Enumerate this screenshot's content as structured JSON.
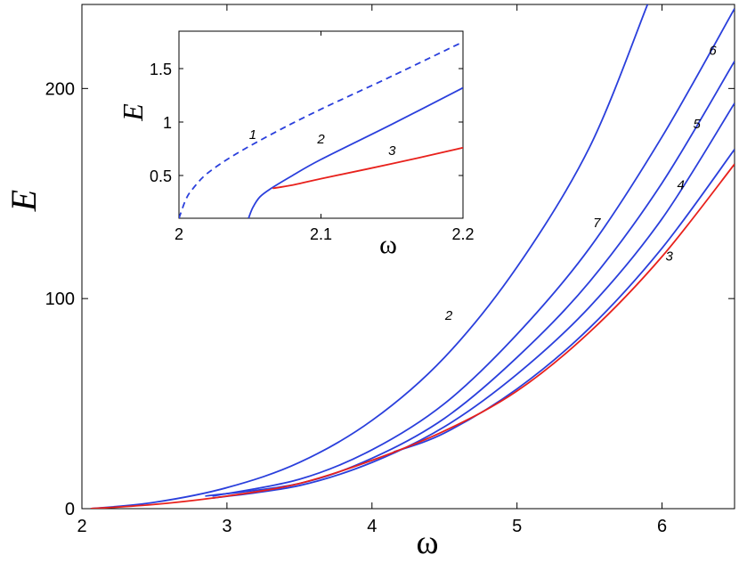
{
  "colors": {
    "blue": "#2a3fdc",
    "red": "#e8211c",
    "axis": "#000000"
  },
  "chart_data": [
    {
      "type": "line",
      "xlabel": "ω",
      "ylabel": "E",
      "xlim": [
        2,
        6.5
      ],
      "ylim": [
        0,
        240
      ],
      "xticks": [
        2,
        3,
        4,
        5,
        6
      ],
      "yticks": [
        0,
        100,
        200
      ],
      "series": [
        {
          "name": "2",
          "color": "#2a3fdc",
          "style": "solid",
          "points": [
            [
              2.06,
              0
            ],
            [
              2.5,
              3
            ],
            [
              3,
              10
            ],
            [
              3.5,
              22
            ],
            [
              4,
              42
            ],
            [
              4.5,
              72
            ],
            [
              5,
              115
            ],
            [
              5.5,
              172
            ],
            [
              5.9,
              240
            ]
          ],
          "label_at": [
            4.53,
            90
          ]
        },
        {
          "name": "7",
          "color": "#2a3fdc",
          "style": "solid",
          "points": [
            [
              2.9,
              6
            ],
            [
              3.5,
              14
            ],
            [
              4,
              28
            ],
            [
              4.5,
              50
            ],
            [
              5,
              83
            ],
            [
              5.5,
              124
            ],
            [
              6,
              177
            ],
            [
              6.5,
              238
            ]
          ],
          "label_at": [
            5.55,
            134
          ]
        },
        {
          "name": "6",
          "color": "#2a3fdc",
          "style": "solid",
          "points": [
            [
              2.85,
              6
            ],
            [
              3.5,
              12
            ],
            [
              4,
              24
            ],
            [
              4.5,
              43
            ],
            [
              5,
              72
            ],
            [
              5.5,
              108
            ],
            [
              6,
              155
            ],
            [
              6.5,
              213
            ]
          ],
          "label_at": [
            6.35,
            216
          ]
        },
        {
          "name": "5",
          "color": "#2a3fdc",
          "style": "solid",
          "points": [
            [
              2.9,
              5
            ],
            [
              3.5,
              11
            ],
            [
              4,
              22
            ],
            [
              4.5,
              39
            ],
            [
              5,
              64
            ],
            [
              5.5,
              96
            ],
            [
              6,
              138
            ],
            [
              6.5,
              193
            ]
          ],
          "label_at": [
            6.24,
            181
          ]
        },
        {
          "name": "4",
          "color": "#2a3fdc",
          "style": "solid",
          "points": [
            [
              4.15,
              27
            ],
            [
              4.5,
              36
            ],
            [
              5,
              57
            ],
            [
              5.5,
              86
            ],
            [
              6,
              124
            ],
            [
              6.5,
              171
            ]
          ],
          "label_at": [
            6.13,
            152
          ]
        },
        {
          "name": "3",
          "color": "#e8211c",
          "style": "solid",
          "points": [
            [
              2.06,
              0
            ],
            [
              2.5,
              2
            ],
            [
              3,
              6
            ],
            [
              3.5,
              12
            ],
            [
              4,
              23
            ],
            [
              4.5,
              37
            ],
            [
              5,
              56
            ],
            [
              5.5,
              84
            ],
            [
              6,
              120
            ],
            [
              6.5,
              164
            ]
          ],
          "label_at": [
            6.05,
            118
          ]
        }
      ]
    },
    {
      "type": "line",
      "xlabel": "ω",
      "ylabel": "E",
      "xlim": [
        2,
        2.2
      ],
      "ylim": [
        0.1,
        1.85
      ],
      "xticks": [
        2,
        2.1,
        2.2
      ],
      "xtick_labels": [
        "2",
        "2.1",
        "2.2"
      ],
      "yticks": [
        0.5,
        1,
        1.5
      ],
      "yticks_labels": [
        "0.5",
        "1",
        "1.5"
      ],
      "series": [
        {
          "name": "1",
          "color": "#2a3fdc",
          "style": "dashed",
          "points": [
            [
              2.0,
              0.1
            ],
            [
              2.005,
              0.28
            ],
            [
              2.01,
              0.38
            ],
            [
              2.02,
              0.52
            ],
            [
              2.04,
              0.7
            ],
            [
              2.07,
              0.92
            ],
            [
              2.1,
              1.12
            ],
            [
              2.15,
              1.43
            ],
            [
              2.2,
              1.75
            ]
          ],
          "label_at": [
            2.052,
            0.84
          ]
        },
        {
          "name": "2",
          "color": "#2a3fdc",
          "style": "solid",
          "points": [
            [
              2.049,
              0.1
            ],
            [
              2.052,
              0.2
            ],
            [
              2.057,
              0.3
            ],
            [
              2.065,
              0.38
            ],
            [
              2.08,
              0.5
            ],
            [
              2.1,
              0.65
            ],
            [
              2.15,
              0.98
            ],
            [
              2.2,
              1.32
            ]
          ],
          "label_at": [
            2.1,
            0.8
          ]
        },
        {
          "name": "3",
          "color": "#e8211c",
          "style": "solid",
          "points": [
            [
              2.066,
              0.38
            ],
            [
              2.08,
              0.41
            ],
            [
              2.1,
              0.47
            ],
            [
              2.15,
              0.61
            ],
            [
              2.2,
              0.76
            ]
          ],
          "label_at": [
            2.15,
            0.69
          ]
        }
      ]
    }
  ]
}
